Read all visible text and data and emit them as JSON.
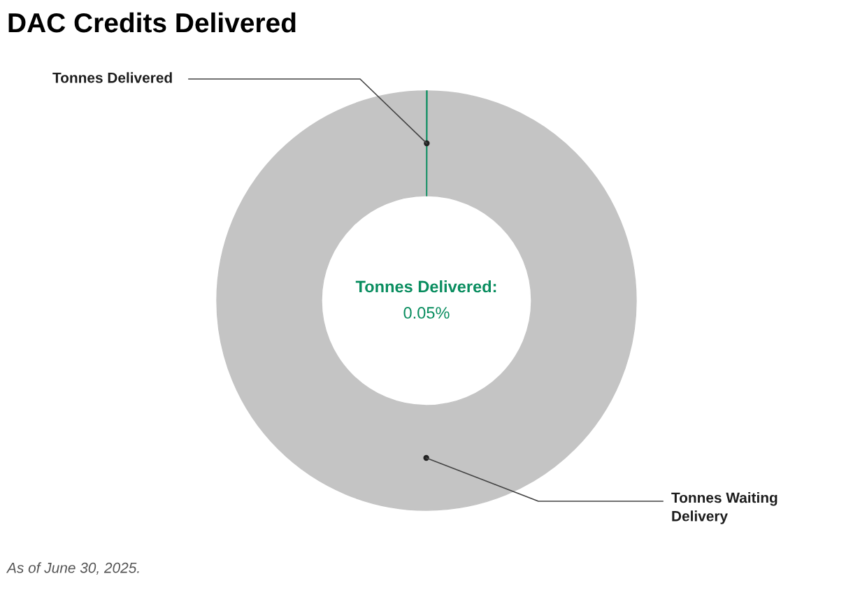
{
  "chart_data": {
    "type": "donut",
    "title": "DAC Credits Delivered",
    "categories": [
      "Tonnes Delivered",
      "Tonnes Waiting Delivery"
    ],
    "values": [
      0.05,
      99.95
    ],
    "colors": [
      "#098d5f",
      "#c4c4c4"
    ],
    "annotations": [
      "Tonnes Delivered:",
      "0.05%",
      "As of June 30, 2025."
    ]
  }
}
